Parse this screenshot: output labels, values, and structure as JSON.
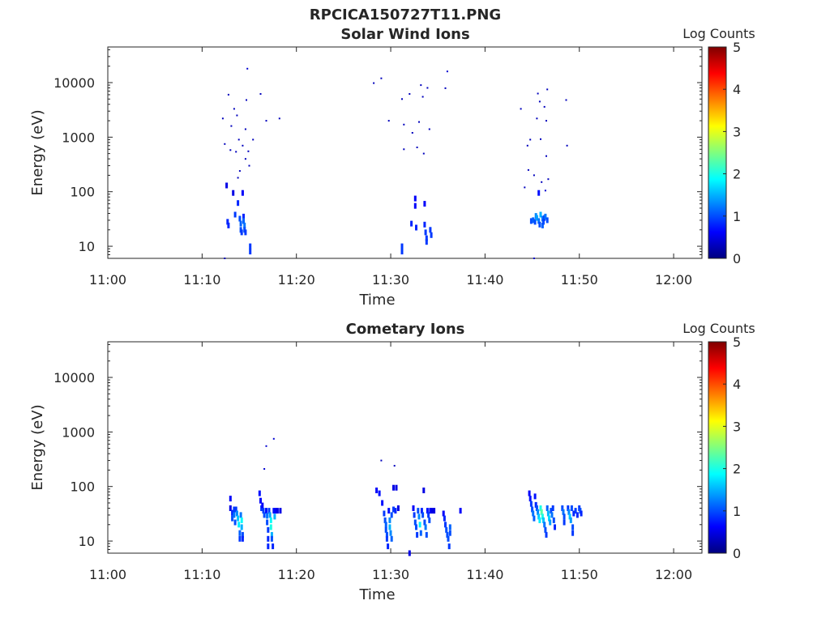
{
  "title": "RPCICA150727T11.PNG",
  "colors": {
    "frame": "#262626",
    "colormap": [
      "#00007f",
      "#0000ff",
      "#007fff",
      "#00ffff",
      "#7fff7f",
      "#ffff00",
      "#ff7f00",
      "#ff0000",
      "#7f0000"
    ]
  },
  "chart_data": [
    {
      "type": "heatmap",
      "title": "Solar Wind Ions",
      "xlabel": "Time",
      "ylabel": "Energy (eV)",
      "x_tick_labels": [
        "11:00",
        "11:10",
        "11:20",
        "11:30",
        "11:40",
        "11:50",
        "12:00"
      ],
      "x_ticks_min": [
        0,
        10,
        20,
        30,
        40,
        50,
        60
      ],
      "xlim_min": [
        0,
        63
      ],
      "y_tick_labels": [
        "10",
        "100",
        "1000",
        "10000"
      ],
      "y_ticks": [
        10,
        100,
        1000,
        10000
      ],
      "ylim": [
        6,
        45000
      ],
      "y_scale": "log",
      "colorbar": {
        "label": "Log Counts",
        "range": [
          0,
          5
        ],
        "tick_labels": [
          "0",
          "1",
          "2",
          "3",
          "4",
          "5"
        ],
        "colormap": "jet"
      },
      "cells": [
        [
          12.2,
          2200,
          0.3
        ],
        [
          12.4,
          750,
          0.3
        ],
        [
          12.6,
          130,
          0.5
        ],
        [
          12.8,
          6000,
          0.3
        ],
        [
          12.7,
          28,
          0.8
        ],
        [
          12.8,
          24,
          0.8
        ],
        [
          13.0,
          580,
          0.3
        ],
        [
          13.1,
          1600,
          0.3
        ],
        [
          13.3,
          95,
          0.5
        ],
        [
          13.4,
          3300,
          0.3
        ],
        [
          13.5,
          38,
          0.9
        ],
        [
          13.6,
          540,
          0.3
        ],
        [
          13.7,
          2500,
          0.3
        ],
        [
          13.8,
          62,
          0.8
        ],
        [
          13.8,
          180,
          0.3
        ],
        [
          13.9,
          900,
          0.3
        ],
        [
          14.0,
          240,
          0.3
        ],
        [
          14.0,
          32,
          1.0
        ],
        [
          14.1,
          26,
          1.1
        ],
        [
          14.1,
          20,
          1.0
        ],
        [
          14.2,
          18,
          0.9
        ],
        [
          14.3,
          700,
          0.3
        ],
        [
          14.3,
          95,
          0.6
        ],
        [
          14.4,
          35,
          0.8
        ],
        [
          14.4,
          29,
          1.1
        ],
        [
          14.5,
          24,
          1.2
        ],
        [
          14.5,
          20,
          1.0
        ],
        [
          14.6,
          18,
          0.9
        ],
        [
          14.7,
          4800,
          0.3
        ],
        [
          14.6,
          1400,
          0.3
        ],
        [
          14.6,
          400,
          0.3
        ],
        [
          14.8,
          18000,
          0.4
        ],
        [
          14.9,
          550,
          0.3
        ],
        [
          15.0,
          300,
          0.3
        ],
        [
          15.1,
          10,
          0.9
        ],
        [
          15.1,
          8,
          0.9
        ],
        [
          15.4,
          900,
          0.3
        ],
        [
          16.2,
          6200,
          0.3
        ],
        [
          16.8,
          2000,
          0.3
        ],
        [
          18.2,
          2200,
          0.3
        ],
        [
          12.4,
          6,
          0.3
        ],
        [
          28.2,
          9800,
          0.3
        ],
        [
          29.0,
          12000,
          0.3
        ],
        [
          29.8,
          2000,
          0.3
        ],
        [
          31.2,
          5000,
          0.3
        ],
        [
          31.4,
          600,
          0.3
        ],
        [
          31.4,
          1700,
          0.3
        ],
        [
          31.2,
          10,
          0.9
        ],
        [
          31.2,
          8,
          0.9
        ],
        [
          32.0,
          6200,
          0.3
        ],
        [
          32.2,
          26,
          0.8
        ],
        [
          32.3,
          1200,
          0.3
        ],
        [
          32.6,
          75,
          0.6
        ],
        [
          32.6,
          55,
          0.6
        ],
        [
          32.7,
          22,
          0.8
        ],
        [
          32.8,
          650,
          0.3
        ],
        [
          33.0,
          1900,
          0.3
        ],
        [
          33.2,
          9000,
          0.3
        ],
        [
          33.4,
          5500,
          0.3
        ],
        [
          33.5,
          500,
          0.3
        ],
        [
          33.6,
          60,
          0.6
        ],
        [
          33.6,
          25,
          0.8
        ],
        [
          33.7,
          18,
          0.9
        ],
        [
          33.8,
          14,
          0.9
        ],
        [
          33.8,
          12,
          0.9
        ],
        [
          33.9,
          8000,
          0.3
        ],
        [
          34.1,
          1400,
          0.3
        ],
        [
          34.2,
          20,
          0.9
        ],
        [
          34.3,
          16,
          0.9
        ],
        [
          35.8,
          7900,
          0.3
        ],
        [
          36.0,
          16000,
          0.4
        ],
        [
          43.8,
          3300,
          0.3
        ],
        [
          44.2,
          120,
          0.3
        ],
        [
          44.5,
          700,
          0.3
        ],
        [
          44.6,
          250,
          0.3
        ],
        [
          44.8,
          900,
          0.3
        ],
        [
          44.9,
          29,
          1.0
        ],
        [
          45.1,
          30,
          1.1
        ],
        [
          45.2,
          200,
          0.3
        ],
        [
          45.3,
          28,
          1.0
        ],
        [
          45.4,
          36,
          1.3
        ],
        [
          45.5,
          33,
          1.4
        ],
        [
          45.5,
          2200,
          0.3
        ],
        [
          45.6,
          6300,
          0.3
        ],
        [
          45.7,
          95,
          0.7
        ],
        [
          45.7,
          29,
          1.2
        ],
        [
          45.8,
          4500,
          0.3
        ],
        [
          45.8,
          25,
          1.0
        ],
        [
          45.9,
          38,
          1.5
        ],
        [
          45.9,
          920,
          0.3
        ],
        [
          46.0,
          150,
          0.3
        ],
        [
          46.1,
          32,
          1.2
        ],
        [
          46.1,
          24,
          1.1
        ],
        [
          46.2,
          28,
          1.0
        ],
        [
          46.3,
          3600,
          0.3
        ],
        [
          46.3,
          33,
          0.9
        ],
        [
          46.4,
          35,
          1.2
        ],
        [
          46.4,
          105,
          0.4
        ],
        [
          46.5,
          2000,
          0.3
        ],
        [
          46.5,
          450,
          0.3
        ],
        [
          46.6,
          7500,
          0.3
        ],
        [
          46.6,
          30,
          1.0
        ],
        [
          46.7,
          170,
          0.3
        ],
        [
          48.6,
          4800,
          0.3
        ],
        [
          48.7,
          700,
          0.3
        ],
        [
          45.2,
          6,
          0.4
        ]
      ]
    },
    {
      "type": "heatmap",
      "title": "Cometary Ions",
      "xlabel": "Time",
      "ylabel": "Energy (eV)",
      "x_tick_labels": [
        "11:00",
        "11:10",
        "11:20",
        "11:30",
        "11:40",
        "11:50",
        "12:00"
      ],
      "x_ticks_min": [
        0,
        10,
        20,
        30,
        40,
        50,
        60
      ],
      "xlim_min": [
        0,
        63
      ],
      "y_tick_labels": [
        "10",
        "100",
        "1000",
        "10000"
      ],
      "y_ticks": [
        10,
        100,
        1000,
        10000
      ],
      "ylim": [
        6,
        45000
      ],
      "y_scale": "log",
      "colorbar": {
        "label": "Log Counts",
        "range": [
          0,
          5
        ],
        "tick_labels": [
          "0",
          "1",
          "2",
          "3",
          "4",
          "5"
        ],
        "colormap": "jet"
      },
      "cells": [
        [
          13.0,
          60,
          0.6
        ],
        [
          13.0,
          40,
          0.5
        ],
        [
          13.2,
          33,
          0.8
        ],
        [
          13.2,
          26,
          1.0
        ],
        [
          13.4,
          38,
          0.9
        ],
        [
          13.4,
          30,
          1.2
        ],
        [
          13.5,
          22,
          1.0
        ],
        [
          13.6,
          38,
          0.9
        ],
        [
          13.7,
          32,
          1.3
        ],
        [
          13.8,
          26,
          1.6
        ],
        [
          13.9,
          20,
          1.8
        ],
        [
          14.0,
          14,
          1.1
        ],
        [
          14.0,
          11,
          0.9
        ],
        [
          14.1,
          30,
          1.2
        ],
        [
          14.2,
          24,
          1.9
        ],
        [
          14.2,
          18,
          1.5
        ],
        [
          14.3,
          13,
          1.0
        ],
        [
          14.3,
          11,
          0.8
        ],
        [
          16.1,
          75,
          0.7
        ],
        [
          16.2,
          55,
          0.6
        ],
        [
          16.3,
          40,
          0.9
        ],
        [
          16.4,
          45,
          0.6
        ],
        [
          16.5,
          36,
          0.9
        ],
        [
          16.6,
          30,
          1.0
        ],
        [
          16.6,
          210,
          0.4
        ],
        [
          16.8,
          36,
          0.7
        ],
        [
          16.9,
          29,
          1.2
        ],
        [
          16.9,
          22,
          1.0
        ],
        [
          17.0,
          16,
          0.9
        ],
        [
          17.0,
          11,
          0.8
        ],
        [
          17.0,
          8,
          0.8
        ],
        [
          17.1,
          36,
          0.9
        ],
        [
          17.2,
          30,
          1.4
        ],
        [
          17.3,
          24,
          1.9
        ],
        [
          17.3,
          18,
          2.0
        ],
        [
          17.4,
          13,
          1.5
        ],
        [
          17.4,
          11,
          1.0
        ],
        [
          17.5,
          8,
          0.8
        ],
        [
          17.6,
          36,
          0.7
        ],
        [
          17.7,
          28,
          1.5
        ],
        [
          17.8,
          36,
          0.6
        ],
        [
          18.0,
          36,
          0.5
        ],
        [
          18.3,
          36,
          0.5
        ],
        [
          16.8,
          550,
          0.4
        ],
        [
          17.6,
          750,
          0.4
        ],
        [
          28.5,
          85,
          0.6
        ],
        [
          28.8,
          75,
          0.7
        ],
        [
          29.0,
          300,
          0.3
        ],
        [
          29.1,
          50,
          0.7
        ],
        [
          29.3,
          32,
          0.9
        ],
        [
          29.4,
          24,
          1.0
        ],
        [
          29.5,
          20,
          1.1
        ],
        [
          29.5,
          16,
          1.0
        ],
        [
          29.6,
          13,
          1.0
        ],
        [
          29.6,
          11,
          0.9
        ],
        [
          29.7,
          8,
          0.8
        ],
        [
          29.8,
          36,
          0.7
        ],
        [
          29.9,
          24,
          1.3
        ],
        [
          29.9,
          18,
          1.5
        ],
        [
          30.0,
          14,
          1.3
        ],
        [
          30.1,
          11,
          1.1
        ],
        [
          30.1,
          30,
          1.0
        ],
        [
          30.3,
          38,
          0.9
        ],
        [
          30.3,
          95,
          0.5
        ],
        [
          30.4,
          240,
          0.3
        ],
        [
          30.5,
          36,
          0.8
        ],
        [
          30.6,
          95,
          0.5
        ],
        [
          30.8,
          40,
          0.5
        ],
        [
          32.4,
          40,
          0.6
        ],
        [
          32.5,
          30,
          0.9
        ],
        [
          32.6,
          22,
          1.0
        ],
        [
          32.7,
          18,
          1.0
        ],
        [
          32.8,
          13,
          0.9
        ],
        [
          32.9,
          36,
          1.0
        ],
        [
          33.0,
          28,
          1.3
        ],
        [
          33.1,
          20,
          1.8
        ],
        [
          33.2,
          14,
          1.1
        ],
        [
          33.3,
          36,
          0.8
        ],
        [
          33.4,
          30,
          1.0
        ],
        [
          33.5,
          85,
          0.5
        ],
        [
          33.6,
          22,
          1.0
        ],
        [
          33.7,
          18,
          1.2
        ],
        [
          33.8,
          13,
          1.0
        ],
        [
          33.9,
          36,
          0.7
        ],
        [
          34.0,
          30,
          0.9
        ],
        [
          34.1,
          24,
          1.0
        ],
        [
          34.2,
          36,
          0.6
        ],
        [
          34.4,
          36,
          0.5
        ],
        [
          34.6,
          36,
          0.5
        ],
        [
          32.0,
          6,
          0.5
        ],
        [
          35.6,
          32,
          0.6
        ],
        [
          35.7,
          26,
          0.8
        ],
        [
          35.8,
          20,
          0.9
        ],
        [
          35.9,
          16,
          1.0
        ],
        [
          36.0,
          13,
          1.0
        ],
        [
          36.1,
          11,
          1.0
        ],
        [
          36.2,
          8,
          0.9
        ],
        [
          36.3,
          18,
          1.1
        ],
        [
          36.3,
          14,
          1.0
        ],
        [
          37.4,
          36,
          0.6
        ],
        [
          44.7,
          75,
          0.6
        ],
        [
          44.8,
          60,
          0.7
        ],
        [
          44.9,
          48,
          0.9
        ],
        [
          45.0,
          38,
          1.0
        ],
        [
          45.1,
          32,
          1.2
        ],
        [
          45.2,
          26,
          1.1
        ],
        [
          45.3,
          66,
          0.7
        ],
        [
          45.4,
          46,
          0.8
        ],
        [
          45.5,
          40,
          1.0
        ],
        [
          45.6,
          34,
          1.3
        ],
        [
          45.7,
          28,
          1.6
        ],
        [
          45.8,
          24,
          1.8
        ],
        [
          45.9,
          40,
          2.0
        ],
        [
          46.0,
          34,
          2.3
        ],
        [
          46.1,
          28,
          2.0
        ],
        [
          46.2,
          24,
          1.6
        ],
        [
          46.3,
          20,
          1.2
        ],
        [
          46.4,
          16,
          1.0
        ],
        [
          46.5,
          13,
          0.9
        ],
        [
          46.6,
          40,
          1.1
        ],
        [
          46.7,
          32,
          1.5
        ],
        [
          46.8,
          26,
          1.7
        ],
        [
          46.9,
          22,
          1.4
        ],
        [
          47.0,
          36,
          1.0
        ],
        [
          47.1,
          30,
          1.2
        ],
        [
          47.2,
          40,
          0.9
        ],
        [
          47.3,
          24,
          1.0
        ],
        [
          47.4,
          18,
          0.8
        ],
        [
          48.2,
          40,
          1.0
        ],
        [
          48.3,
          34,
          1.2
        ],
        [
          48.4,
          28,
          1.0
        ],
        [
          48.4,
          22,
          0.9
        ],
        [
          48.8,
          40,
          0.9
        ],
        [
          48.9,
          34,
          1.3
        ],
        [
          49.0,
          28,
          1.6
        ],
        [
          49.1,
          24,
          1.4
        ],
        [
          49.2,
          40,
          1.0
        ],
        [
          49.3,
          18,
          1.0
        ],
        [
          49.3,
          14,
          0.9
        ],
        [
          49.4,
          32,
          0.8
        ],
        [
          49.6,
          36,
          0.9
        ],
        [
          49.8,
          30,
          0.8
        ],
        [
          50.0,
          40,
          0.9
        ],
        [
          50.1,
          36,
          1.0
        ],
        [
          50.2,
          32,
          0.8
        ]
      ]
    }
  ]
}
